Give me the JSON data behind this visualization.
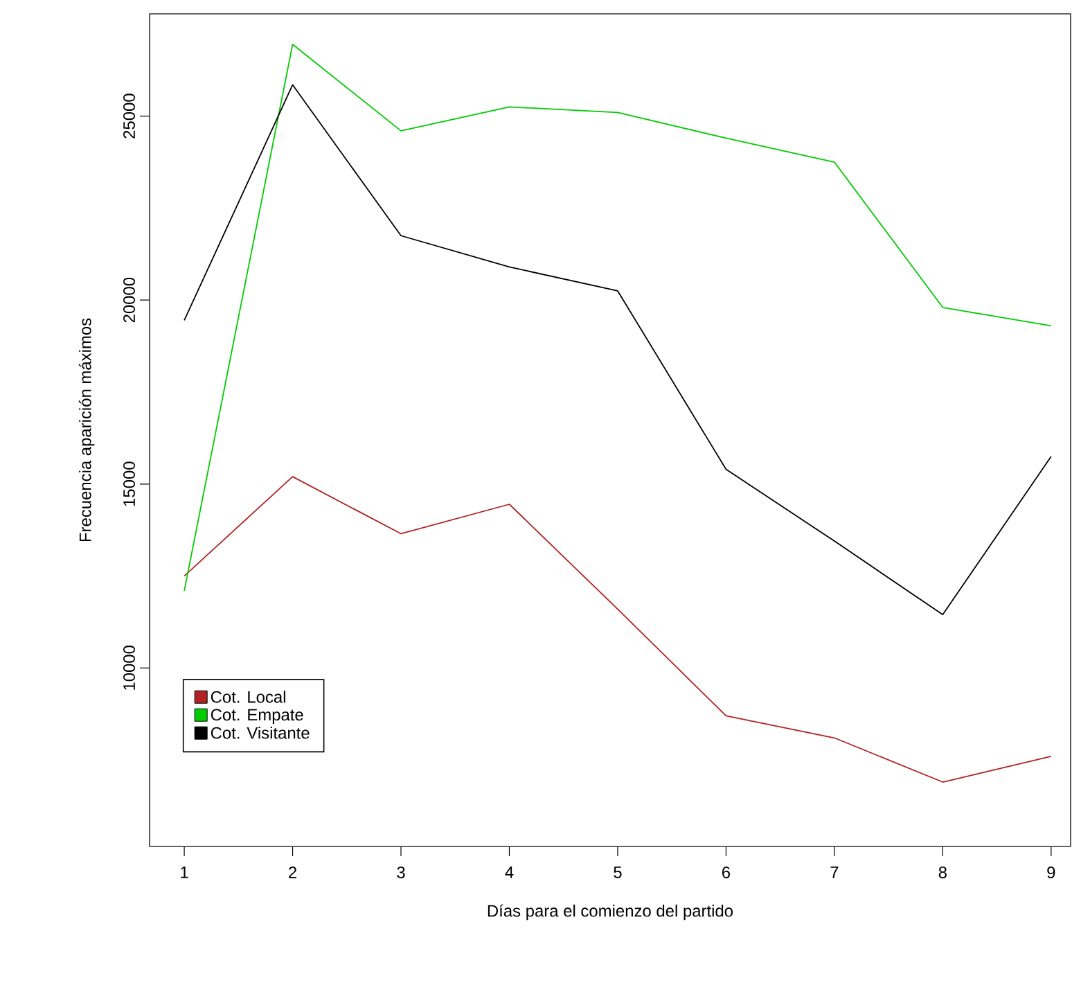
{
  "chart_data": {
    "type": "line",
    "xlabel": "Días para el comienzo del partido",
    "ylabel": "Frecuencia aparición máximos",
    "x": [
      1,
      2,
      3,
      4,
      5,
      6,
      7,
      8,
      9
    ],
    "series": [
      {
        "name": "Cot. Local",
        "color": "#b22222",
        "values": [
          12500,
          15200,
          13650,
          14450,
          11600,
          8700,
          8100,
          6900,
          7600
        ]
      },
      {
        "name": "Cot. Empate",
        "color": "#00cc00",
        "values": [
          12100,
          26950,
          24600,
          25250,
          25100,
          24400,
          23750,
          19800,
          19300
        ]
      },
      {
        "name": "Cot. Visitante",
        "color": "#000000",
        "values": [
          19450,
          25850,
          21750,
          20900,
          20250,
          15400,
          13450,
          11450,
          15750
        ]
      }
    ],
    "xlim": [
      0.68,
      9.18
    ],
    "ylim": [
      5150,
      27780
    ],
    "xticks": [
      1,
      2,
      3,
      4,
      5,
      6,
      7,
      8,
      9
    ],
    "yticks": [
      10000,
      15000,
      20000,
      25000
    ],
    "legend": "left",
    "grid": false,
    "marker": "none",
    "line_style": "solid"
  }
}
